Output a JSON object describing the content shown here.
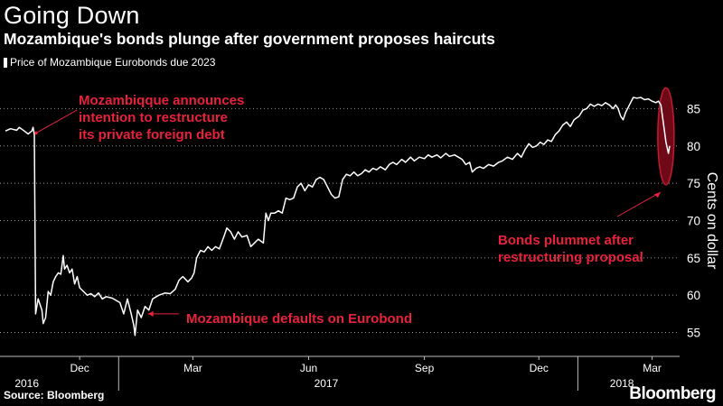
{
  "header": {
    "title": "Going Down",
    "subtitle": "Mozambique's bonds plunge after government proposes haircuts"
  },
  "footer": {
    "source": "Source: Bloomberg",
    "brand": "Bloomberg"
  },
  "colors": {
    "background": "#000000",
    "line": "#ffffff",
    "annotation": "#e8223c",
    "ellipse_fill": "#6e0a18",
    "ellipse_stroke": "#c21a30"
  },
  "chart_data": {
    "type": "line",
    "legend": "top-left",
    "grid": "horizontal-dotted",
    "ylabel": "Cents on dollar",
    "ylim": [
      52,
      90
    ],
    "yticks": [
      55,
      60,
      65,
      70,
      75,
      80,
      85
    ],
    "xlim": [
      "2016-10-03",
      "2018-03-20"
    ],
    "x_ticks": [
      {
        "label": "Dec",
        "date": "2016-12-01"
      },
      {
        "label": "Mar",
        "date": "2017-03-01"
      },
      {
        "label": "Jun",
        "date": "2017-06-01"
      },
      {
        "label": "Sep",
        "date": "2017-09-01"
      },
      {
        "label": "Dec",
        "date": "2017-12-01"
      },
      {
        "label": "Mar",
        "date": "2018-03-01"
      }
    ],
    "year_labels": [
      {
        "label": "2016",
        "date": "2016-10-20"
      },
      {
        "label": "2017",
        "date": "2017-06-15"
      },
      {
        "label": "2018",
        "date": "2018-02-05"
      }
    ],
    "year_separators": [
      "2017-01-01",
      "2018-01-01"
    ],
    "series": [
      {
        "name": "Price of Mozambique Eurobonds due 2023",
        "points": [
          [
            "2016-10-03",
            82.0
          ],
          [
            "2016-10-07",
            82.3
          ],
          [
            "2016-10-12",
            82.1
          ],
          [
            "2016-10-14",
            82.5
          ],
          [
            "2016-10-18",
            82.0
          ],
          [
            "2016-10-21",
            81.6
          ],
          [
            "2016-10-24",
            82.0
          ],
          [
            "2016-10-25",
            82.5
          ],
          [
            "2016-10-26",
            81.5
          ],
          [
            "2016-10-27",
            57.5
          ],
          [
            "2016-10-29",
            59.5
          ],
          [
            "2016-11-01",
            58.0
          ],
          [
            "2016-11-02",
            56.2
          ],
          [
            "2016-11-04",
            57.0
          ],
          [
            "2016-11-06",
            60.5
          ],
          [
            "2016-11-08",
            60.0
          ],
          [
            "2016-11-10",
            61.8
          ],
          [
            "2016-11-12",
            62.5
          ],
          [
            "2016-11-14",
            63.0
          ],
          [
            "2016-11-16",
            62.8
          ],
          [
            "2016-11-18",
            65.3
          ],
          [
            "2016-11-19",
            63.5
          ],
          [
            "2016-11-21",
            64.0
          ],
          [
            "2016-11-23",
            63.0
          ],
          [
            "2016-11-25",
            63.5
          ],
          [
            "2016-11-27",
            61.5
          ],
          [
            "2016-11-29",
            62.5
          ],
          [
            "2016-12-01",
            61.0
          ],
          [
            "2016-12-04",
            60.5
          ],
          [
            "2016-12-07",
            60.0
          ],
          [
            "2016-12-10",
            60.2
          ],
          [
            "2016-12-13",
            59.8
          ],
          [
            "2016-12-16",
            60.3
          ],
          [
            "2016-12-19",
            59.5
          ],
          [
            "2016-12-22",
            59.8
          ],
          [
            "2016-12-27",
            59.6
          ],
          [
            "2017-01-02",
            59.0
          ],
          [
            "2017-01-05",
            57.5
          ],
          [
            "2017-01-08",
            59.5
          ],
          [
            "2017-01-11",
            57.5
          ],
          [
            "2017-01-13",
            56.0
          ],
          [
            "2017-01-14",
            54.6
          ],
          [
            "2017-01-16",
            58.0
          ],
          [
            "2017-01-19",
            57.0
          ],
          [
            "2017-01-22",
            58.5
          ],
          [
            "2017-01-25",
            58.0
          ],
          [
            "2017-01-28",
            59.5
          ],
          [
            "2017-02-02",
            60.0
          ],
          [
            "2017-02-07",
            60.3
          ],
          [
            "2017-02-11",
            60.2
          ],
          [
            "2017-02-15",
            60.8
          ],
          [
            "2017-02-18",
            62.0
          ],
          [
            "2017-02-21",
            62.5
          ],
          [
            "2017-02-25",
            61.8
          ],
          [
            "2017-02-28",
            62.3
          ],
          [
            "2017-03-02",
            63.0
          ],
          [
            "2017-03-04",
            65.0
          ],
          [
            "2017-03-07",
            66.0
          ],
          [
            "2017-03-10",
            65.8
          ],
          [
            "2017-03-13",
            66.5
          ],
          [
            "2017-03-16",
            66.0
          ],
          [
            "2017-03-19",
            66.5
          ],
          [
            "2017-03-22",
            66.2
          ],
          [
            "2017-03-26",
            68.0
          ],
          [
            "2017-03-28",
            69.0
          ],
          [
            "2017-03-31",
            68.5
          ],
          [
            "2017-04-03",
            67.5
          ],
          [
            "2017-04-06",
            68.5
          ],
          [
            "2017-04-09",
            67.8
          ],
          [
            "2017-04-13",
            68.0
          ],
          [
            "2017-04-16",
            66.5
          ],
          [
            "2017-04-19",
            67.0
          ],
          [
            "2017-04-22",
            67.5
          ],
          [
            "2017-04-26",
            67.0
          ],
          [
            "2017-04-28",
            71.0
          ],
          [
            "2017-04-30",
            70.0
          ],
          [
            "2017-05-02",
            71.0
          ],
          [
            "2017-05-05",
            71.0
          ],
          [
            "2017-05-08",
            71.3
          ],
          [
            "2017-05-11",
            71.0
          ],
          [
            "2017-05-14",
            73.0
          ],
          [
            "2017-05-17",
            72.8
          ],
          [
            "2017-05-20",
            73.0
          ],
          [
            "2017-05-23",
            74.5
          ],
          [
            "2017-05-26",
            75.0
          ],
          [
            "2017-05-29",
            74.0
          ],
          [
            "2017-06-01",
            74.8
          ],
          [
            "2017-06-04",
            74.5
          ],
          [
            "2017-06-07",
            75.5
          ],
          [
            "2017-06-10",
            75.8
          ],
          [
            "2017-06-13",
            75.5
          ],
          [
            "2017-06-16",
            74.5
          ],
          [
            "2017-06-19",
            73.5
          ],
          [
            "2017-06-22",
            73.0
          ],
          [
            "2017-06-25",
            73.2
          ],
          [
            "2017-06-28",
            75.5
          ],
          [
            "2017-07-01",
            76.2
          ],
          [
            "2017-07-04",
            76.0
          ],
          [
            "2017-07-07",
            76.5
          ],
          [
            "2017-07-10",
            76.0
          ],
          [
            "2017-07-13",
            76.3
          ],
          [
            "2017-07-16",
            76.8
          ],
          [
            "2017-07-19",
            76.5
          ],
          [
            "2017-07-22",
            77.0
          ],
          [
            "2017-07-25",
            76.8
          ],
          [
            "2017-07-28",
            77.2
          ],
          [
            "2017-08-01",
            76.8
          ],
          [
            "2017-08-04",
            77.5
          ],
          [
            "2017-08-07",
            77.8
          ],
          [
            "2017-08-10",
            77.5
          ],
          [
            "2017-08-14",
            78.2
          ],
          [
            "2017-08-17",
            77.8
          ],
          [
            "2017-08-21",
            78.5
          ],
          [
            "2017-08-24",
            78.0
          ],
          [
            "2017-08-28",
            78.5
          ],
          [
            "2017-09-01",
            78.3
          ],
          [
            "2017-09-04",
            78.8
          ],
          [
            "2017-09-07",
            78.5
          ],
          [
            "2017-09-11",
            78.8
          ],
          [
            "2017-09-14",
            78.4
          ],
          [
            "2017-09-18",
            79.0
          ],
          [
            "2017-09-21",
            78.6
          ],
          [
            "2017-09-25",
            78.8
          ],
          [
            "2017-09-28",
            78.5
          ],
          [
            "2017-10-01",
            78.2
          ],
          [
            "2017-10-04",
            77.5
          ],
          [
            "2017-10-07",
            77.8
          ],
          [
            "2017-10-09",
            76.5
          ],
          [
            "2017-10-12",
            77.0
          ],
          [
            "2017-10-15",
            77.2
          ],
          [
            "2017-10-18",
            77.0
          ],
          [
            "2017-10-22",
            77.5
          ],
          [
            "2017-10-26",
            77.3
          ],
          [
            "2017-10-30",
            77.8
          ],
          [
            "2017-11-02",
            78.0
          ],
          [
            "2017-11-06",
            78.5
          ],
          [
            "2017-11-10",
            78.2
          ],
          [
            "2017-11-14",
            79.0
          ],
          [
            "2017-11-17",
            78.5
          ],
          [
            "2017-11-20",
            79.5
          ],
          [
            "2017-11-23",
            80.3
          ],
          [
            "2017-11-26",
            79.8
          ],
          [
            "2017-11-29",
            80.0
          ],
          [
            "2017-12-02",
            80.5
          ],
          [
            "2017-12-05",
            80.2
          ],
          [
            "2017-12-08",
            80.8
          ],
          [
            "2017-12-11",
            80.6
          ],
          [
            "2017-12-14",
            81.5
          ],
          [
            "2017-12-17",
            82.0
          ],
          [
            "2017-12-20",
            82.8
          ],
          [
            "2017-12-23",
            83.2
          ],
          [
            "2017-12-26",
            82.6
          ],
          [
            "2017-12-29",
            83.5
          ],
          [
            "2018-01-02",
            84.0
          ],
          [
            "2018-01-05",
            84.8
          ],
          [
            "2018-01-08",
            85.0
          ],
          [
            "2018-01-11",
            85.6
          ],
          [
            "2018-01-14",
            85.3
          ],
          [
            "2018-01-17",
            85.6
          ],
          [
            "2018-01-20",
            85.4
          ],
          [
            "2018-01-23",
            85.8
          ],
          [
            "2018-01-26",
            85.5
          ],
          [
            "2018-01-29",
            85.0
          ],
          [
            "2018-01-31",
            85.5
          ],
          [
            "2018-02-02",
            85.0
          ],
          [
            "2018-02-04",
            84.0
          ],
          [
            "2018-02-06",
            83.5
          ],
          [
            "2018-02-08",
            84.5
          ],
          [
            "2018-02-11",
            85.5
          ],
          [
            "2018-02-14",
            86.5
          ],
          [
            "2018-02-17",
            86.4
          ],
          [
            "2018-02-20",
            86.5
          ],
          [
            "2018-02-23",
            86.2
          ],
          [
            "2018-02-26",
            86.3
          ],
          [
            "2018-03-01",
            86.0
          ],
          [
            "2018-03-04",
            85.8
          ],
          [
            "2018-03-06",
            86.0
          ],
          [
            "2018-03-08",
            85.5
          ],
          [
            "2018-03-10",
            83.0
          ],
          [
            "2018-03-12",
            80.5
          ],
          [
            "2018-03-14",
            79.0
          ],
          [
            "2018-03-15",
            80.0
          ]
        ]
      }
    ],
    "annotations": [
      {
        "id": "restructure",
        "lines": [
          "Mozambiqque announces",
          "intention to restructure",
          "its private foreign debt"
        ],
        "target": [
          "2016-10-26",
          81.5
        ]
      },
      {
        "id": "default",
        "text": "Mozambique defaults on Eurobond",
        "target": [
          "2017-01-20",
          57.5
        ]
      },
      {
        "id": "plummet",
        "lines": [
          "Bonds plummet after",
          "restructuring proposal"
        ],
        "target": [
          "2018-03-12",
          75.0
        ]
      }
    ],
    "highlight": {
      "shape": "ellipse",
      "center": [
        "2018-03-12",
        81.3
      ],
      "y_range": [
        74.8,
        87.8
      ]
    }
  }
}
